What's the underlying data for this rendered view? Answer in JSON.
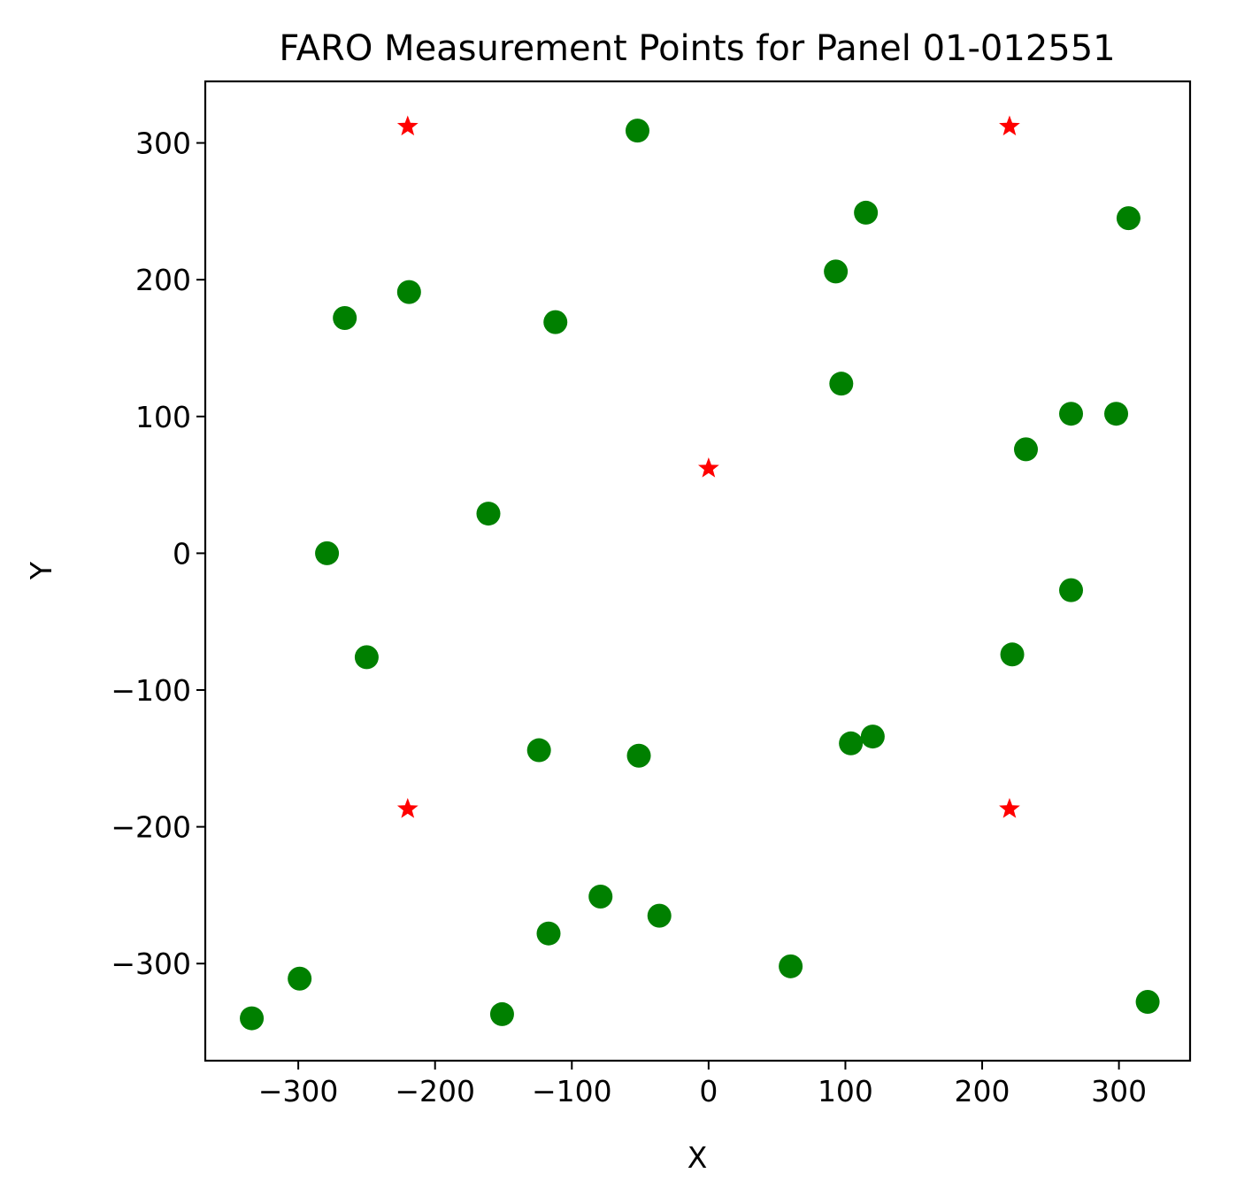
{
  "chart_data": {
    "type": "scatter",
    "title": "FARO Measurement Points for Panel 01-012551",
    "xlabel": "X",
    "ylabel": "Y",
    "xlim": [
      -368,
      352
    ],
    "ylim": [
      -371,
      345
    ],
    "grid": false,
    "xticks": [
      -300,
      -200,
      -100,
      0,
      100,
      200,
      300
    ],
    "yticks": [
      -300,
      -200,
      -100,
      0,
      100,
      200,
      300
    ],
    "series": [
      {
        "marker": "circle",
        "color": "#008000",
        "points": [
          {
            "x": -52,
            "y": 309
          },
          {
            "x": 115,
            "y": 249
          },
          {
            "x": 307,
            "y": 245
          },
          {
            "x": 93,
            "y": 206
          },
          {
            "x": -219,
            "y": 191
          },
          {
            "x": -266,
            "y": 172
          },
          {
            "x": -112,
            "y": 169
          },
          {
            "x": 97,
            "y": 124
          },
          {
            "x": 265,
            "y": 102
          },
          {
            "x": 298,
            "y": 102
          },
          {
            "x": 232,
            "y": 76
          },
          {
            "x": -161,
            "y": 29
          },
          {
            "x": -279,
            "y": 0
          },
          {
            "x": 265,
            "y": -27
          },
          {
            "x": -250,
            "y": -76
          },
          {
            "x": 222,
            "y": -74
          },
          {
            "x": 120,
            "y": -134
          },
          {
            "x": 104,
            "y": -139
          },
          {
            "x": -124,
            "y": -144
          },
          {
            "x": -51,
            "y": -148
          },
          {
            "x": -79,
            "y": -251
          },
          {
            "x": -36,
            "y": -265
          },
          {
            "x": -117,
            "y": -278
          },
          {
            "x": 60,
            "y": -302
          },
          {
            "x": -299,
            "y": -311
          },
          {
            "x": 321,
            "y": -328
          },
          {
            "x": -151,
            "y": -337
          },
          {
            "x": -334,
            "y": -340
          }
        ]
      },
      {
        "marker": "star",
        "color": "#ff0000",
        "points": [
          {
            "x": -220,
            "y": 312
          },
          {
            "x": 220,
            "y": 312
          },
          {
            "x": 0,
            "y": 62
          },
          {
            "x": -220,
            "y": -187
          },
          {
            "x": 220,
            "y": -187
          }
        ]
      }
    ]
  }
}
